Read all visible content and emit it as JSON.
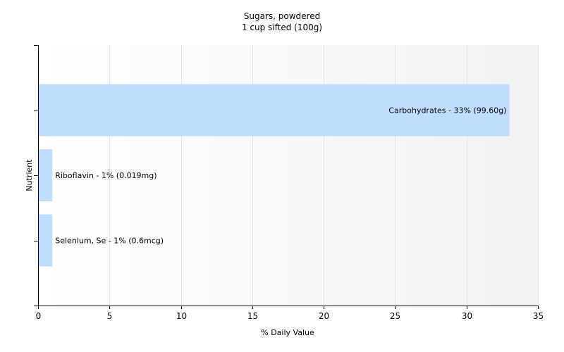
{
  "chart_data": {
    "type": "bar",
    "orientation": "horizontal",
    "title": "Sugars, powdered",
    "subtitle": "1 cup sifted (100g)",
    "xlabel": "% Daily Value",
    "ylabel": "Nutrient",
    "xlim": [
      0,
      35
    ],
    "xticks": [
      0,
      5,
      10,
      15,
      20,
      25,
      30,
      35
    ],
    "grid": true,
    "bars": [
      {
        "label": "Carbohydrates - 33% (99.60g)",
        "value": 33
      },
      {
        "label": "Riboflavin - 1% (0.019mg)",
        "value": 1
      },
      {
        "label": "Selenium, Se - 1% (0.6mcg)",
        "value": 1
      }
    ],
    "colors": {
      "bar": "#c1dcfe",
      "grid": "#e4e4e4",
      "axis": "#000000"
    }
  }
}
